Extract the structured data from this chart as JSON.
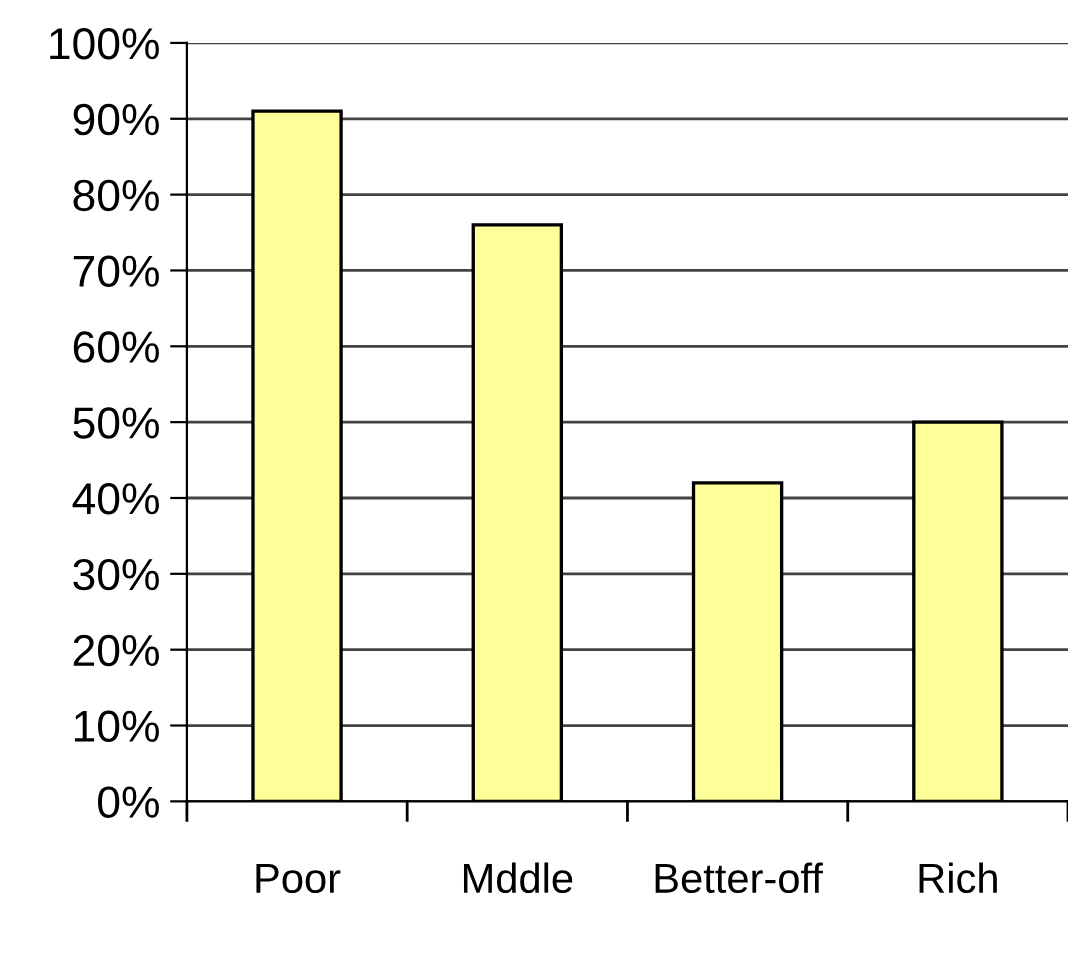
{
  "chart_data": {
    "type": "bar",
    "categories": [
      "Poor",
      "Mddle",
      "Better-off",
      "Rich"
    ],
    "values": [
      91,
      76,
      42,
      50
    ],
    "color": "#ffff99",
    "ylim": [
      0,
      100
    ],
    "yticks": [
      {
        "value": 0,
        "label": "0%"
      },
      {
        "value": 10,
        "label": "10%"
      },
      {
        "value": 20,
        "label": "20%"
      },
      {
        "value": 30,
        "label": "30%"
      },
      {
        "value": 40,
        "label": "40%"
      },
      {
        "value": 50,
        "label": "50%"
      },
      {
        "value": 60,
        "label": "60%"
      },
      {
        "value": 70,
        "label": "70%"
      },
      {
        "value": 80,
        "label": "80%"
      },
      {
        "value": 90,
        "label": "90%"
      },
      {
        "value": 100,
        "label": "100%"
      }
    ],
    "grid": "y"
  }
}
